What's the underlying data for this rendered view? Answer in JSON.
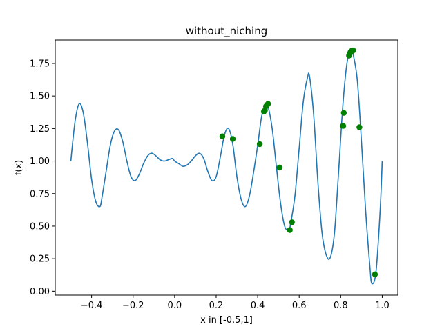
{
  "chart_data": {
    "type": "line",
    "title": "without_niching",
    "xlabel": "x in [-0.5,1]",
    "ylabel": "f(x)",
    "xlim": [
      -0.575,
      1.075
    ],
    "ylim": [
      -0.03,
      1.93
    ],
    "x_ticks": [
      -0.4,
      -0.2,
      0.0,
      0.2,
      0.4,
      0.6,
      0.8,
      1.0
    ],
    "x_tick_labels": [
      "−0.4",
      "−0.2",
      "0.0",
      "0.2",
      "0.4",
      "0.6",
      "0.8",
      "1.0"
    ],
    "y_ticks": [
      0.0,
      0.25,
      0.5,
      0.75,
      1.0,
      1.25,
      1.5,
      1.75
    ],
    "y_tick_labels": [
      "0.00",
      "0.25",
      "0.50",
      "0.75",
      "1.00",
      "1.25",
      "1.50",
      "1.75"
    ],
    "grid": false,
    "colors": {
      "curve": "#1f77b4",
      "points": "#008000"
    },
    "series": [
      {
        "type": "line",
        "x": [
          -0.5,
          -0.48,
          -0.46,
          -0.44,
          -0.42,
          -0.4,
          -0.38,
          -0.36,
          -0.35,
          -0.33,
          -0.31,
          -0.29,
          -0.27,
          -0.25,
          -0.23,
          -0.21,
          -0.19,
          -0.17,
          -0.15,
          -0.13,
          -0.11,
          -0.09,
          -0.07,
          -0.05,
          -0.03,
          -0.01,
          0.0,
          0.02,
          0.04,
          0.06,
          0.08,
          0.1,
          0.12,
          0.14,
          0.16,
          0.18,
          0.2,
          0.22,
          0.24,
          0.26,
          0.28,
          0.3,
          0.32,
          0.34,
          0.36,
          0.38,
          0.4,
          0.42,
          0.44,
          0.45,
          0.47,
          0.49,
          0.51,
          0.53,
          0.55,
          0.56,
          0.58,
          0.6,
          0.62,
          0.64,
          0.65,
          0.67,
          0.69,
          0.71,
          0.73,
          0.75,
          0.77,
          0.79,
          0.81,
          0.83,
          0.85,
          0.86,
          0.88,
          0.9,
          0.92,
          0.94,
          0.95,
          0.97,
          0.99,
          1.0
        ],
        "y": [
          1.0,
          1.3,
          1.44,
          1.37,
          1.14,
          0.86,
          0.69,
          0.65,
          0.72,
          0.92,
          1.12,
          1.23,
          1.24,
          1.15,
          1.0,
          0.88,
          0.85,
          0.9,
          0.98,
          1.04,
          1.06,
          1.04,
          1.01,
          1.0,
          1.01,
          1.02,
          1.0,
          0.98,
          0.96,
          0.97,
          1.0,
          1.04,
          1.06,
          1.02,
          0.92,
          0.85,
          0.88,
          1.03,
          1.2,
          1.25,
          1.13,
          0.88,
          0.71,
          0.65,
          0.73,
          0.91,
          1.12,
          1.35,
          1.43,
          1.42,
          1.25,
          0.96,
          0.68,
          0.5,
          0.47,
          0.53,
          0.74,
          1.1,
          1.46,
          1.64,
          1.65,
          1.35,
          0.84,
          0.45,
          0.28,
          0.26,
          0.45,
          0.92,
          1.42,
          1.75,
          1.85,
          1.82,
          1.62,
          1.15,
          0.62,
          0.2,
          0.06,
          0.15,
          0.62,
          1.0
        ]
      },
      {
        "type": "scatter",
        "x": [
          0.23,
          0.28,
          0.41,
          0.43,
          0.435,
          0.44,
          0.445,
          0.45,
          0.505,
          0.555,
          0.565,
          0.81,
          0.812,
          0.815,
          0.84,
          0.842,
          0.845,
          0.848,
          0.85,
          0.855,
          0.86,
          0.89,
          0.965
        ],
        "y": [
          1.19,
          1.17,
          1.13,
          1.38,
          1.39,
          1.42,
          1.43,
          1.44,
          0.95,
          0.47,
          0.53,
          1.27,
          1.27,
          1.37,
          1.81,
          1.82,
          1.83,
          1.84,
          1.84,
          1.85,
          1.85,
          1.26,
          0.13
        ]
      }
    ]
  }
}
